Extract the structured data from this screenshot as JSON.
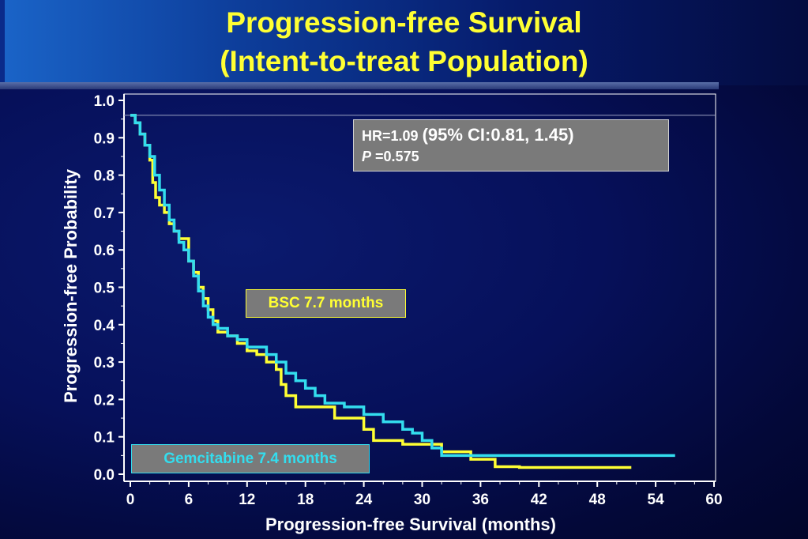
{
  "header": {
    "title_line1": "Progression-free Survival",
    "title_line2": "(Intent-to-treat Population)"
  },
  "stats": {
    "hr_label": "HR=1.09",
    "ci_label": "(95% CI:0.81, 1.45)",
    "p_symbol": "P",
    "p_value": "=0.575"
  },
  "annotations": {
    "bsc": "BSC 7.7 months",
    "gemcitabine": "Gemcitabine 7.4 months"
  },
  "colors": {
    "background": "#06105a",
    "title": "#ffff33",
    "bsc": "#ffff33",
    "gemcitabine": "#33ddee",
    "axis": "#ffffff"
  },
  "chart_data": {
    "type": "line",
    "step": true,
    "xlabel": "Progression-free Survival (months)",
    "ylabel": "Progression-free Probability",
    "xlim": [
      0,
      60
    ],
    "ylim": [
      0,
      1.0
    ],
    "xticks": [
      0,
      6,
      12,
      18,
      24,
      30,
      36,
      42,
      48,
      54,
      60
    ],
    "yticks": [
      0.0,
      0.1,
      0.2,
      0.3,
      0.4,
      0.5,
      0.6,
      0.7,
      0.8,
      0.9,
      1.0
    ],
    "ytick_labels": [
      "0.0",
      "0.1",
      "0.2",
      "0.3",
      "0.4",
      "0.5",
      "0.6",
      "0.7",
      "0.8",
      "0.9",
      "1.0"
    ],
    "grid": false,
    "series": [
      {
        "name": "BSC",
        "color": "#ffff33",
        "x": [
          0,
          0.5,
          1.0,
          1.5,
          2.0,
          2.3,
          2.6,
          3.0,
          3.5,
          4.0,
          4.5,
          5.0,
          6.0,
          6.5,
          7.0,
          7.5,
          8.0,
          8.5,
          9.0,
          10.0,
          11.0,
          12.0,
          13.0,
          14.0,
          15.0,
          15.5,
          16.0,
          17.0,
          21.0,
          22.0,
          24.0,
          25.0,
          28.0,
          32.0,
          35.0,
          37.5,
          40.0,
          51.5
        ],
        "y": [
          0.96,
          0.94,
          0.91,
          0.88,
          0.84,
          0.78,
          0.74,
          0.72,
          0.7,
          0.67,
          0.65,
          0.63,
          0.57,
          0.54,
          0.5,
          0.47,
          0.44,
          0.41,
          0.38,
          0.37,
          0.35,
          0.33,
          0.32,
          0.3,
          0.28,
          0.24,
          0.21,
          0.18,
          0.15,
          0.15,
          0.12,
          0.09,
          0.08,
          0.06,
          0.04,
          0.02,
          0.018,
          0.018
        ]
      },
      {
        "name": "Gemcitabine",
        "color": "#33ddee",
        "x": [
          0,
          0.5,
          1.0,
          1.5,
          2.0,
          2.5,
          3.0,
          3.5,
          4.0,
          4.5,
          5.0,
          5.5,
          6.0,
          6.5,
          7.0,
          7.5,
          8.0,
          8.5,
          9.0,
          10.0,
          11.0,
          12.0,
          14.0,
          15.0,
          16.0,
          17.0,
          18.0,
          19.0,
          20.0,
          22.0,
          24.0,
          26.0,
          28.0,
          29.0,
          30.0,
          31.0,
          32.0,
          35.0,
          56.0
        ],
        "y": [
          0.96,
          0.94,
          0.91,
          0.88,
          0.85,
          0.8,
          0.76,
          0.72,
          0.68,
          0.65,
          0.62,
          0.6,
          0.57,
          0.53,
          0.49,
          0.45,
          0.42,
          0.4,
          0.39,
          0.37,
          0.36,
          0.34,
          0.32,
          0.3,
          0.27,
          0.25,
          0.23,
          0.21,
          0.19,
          0.18,
          0.16,
          0.14,
          0.12,
          0.11,
          0.09,
          0.07,
          0.05,
          0.05,
          0.05
        ]
      }
    ]
  }
}
